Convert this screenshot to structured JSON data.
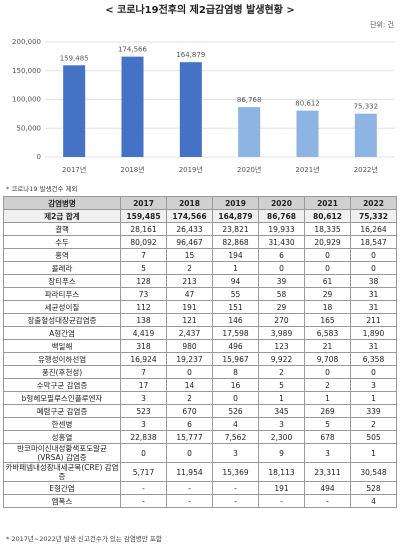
{
  "chart_data": {
    "type": "bar",
    "title": "< 코로나19전후의 제2급감염병 발생현황 >",
    "unit": "단위: 건",
    "categories": [
      "2017년",
      "2018년",
      "2019년",
      "2020년",
      "2021년",
      "2022년"
    ],
    "values": [
      159485,
      174566,
      164879,
      86768,
      80612,
      75332
    ],
    "value_labels": [
      "159,485",
      "174,566",
      "164,879",
      "86,768",
      "80,612",
      "75,332"
    ],
    "colors": [
      "#4472c4",
      "#4472c4",
      "#4472c4",
      "#8eb4e3",
      "#8eb4e3",
      "#8eb4e3"
    ],
    "ylim": [
      0,
      200000
    ],
    "yticks": [
      0,
      {
        "value": 50000,
        "label": "50,000"
      },
      {
        "value": 100000,
        "label": "100,000"
      },
      {
        "value": 150000,
        "label": "150,000"
      },
      {
        "value": 200000,
        "label": "200,000"
      }
    ],
    "grid": true,
    "note": "* 코로나19 발생건수 제외"
  },
  "table": {
    "header": [
      "감염병명",
      "2017",
      "2018",
      "2019",
      "2020",
      "2021",
      "2022"
    ],
    "rows": [
      [
        "제2급 합계",
        "159,485",
        "174,566",
        "164,879",
        "86,768",
        "80,612",
        "75,332"
      ],
      [
        "결핵",
        "28,161",
        "26,433",
        "23,821",
        "19,933",
        "18,335",
        "16,264"
      ],
      [
        "수두",
        "80,092",
        "96,467",
        "82,868",
        "31,430",
        "20,929",
        "18,547"
      ],
      [
        "홍역",
        "7",
        "15",
        "194",
        "6",
        "0",
        "0"
      ],
      [
        "콜레라",
        "5",
        "2",
        "1",
        "0",
        "0",
        "0"
      ],
      [
        "장티푸스",
        "128",
        "213",
        "94",
        "39",
        "61",
        "38"
      ],
      [
        "파라티푸스",
        "73",
        "47",
        "55",
        "58",
        "29",
        "31"
      ],
      [
        "세균성이질",
        "112",
        "191",
        "151",
        "29",
        "18",
        "31"
      ],
      [
        "장출혈성대장균감염증",
        "138",
        "121",
        "146",
        "270",
        "165",
        "211"
      ],
      [
        "A형간염",
        "4,419",
        "2,437",
        "17,598",
        "3,989",
        "6,583",
        "1,890"
      ],
      [
        "백일해",
        "318",
        "980",
        "496",
        "123",
        "21",
        "31"
      ],
      [
        "유행성이하선염",
        "16,924",
        "19,237",
        "15,967",
        "9,922",
        "9,708",
        "6,358"
      ],
      [
        "풍진(후천성)",
        "7",
        "0",
        "8",
        "2",
        "0",
        "0"
      ],
      [
        "수막구균 감염증",
        "17",
        "14",
        "16",
        "5",
        "2",
        "3"
      ],
      [
        "b형헤모필루스인플루엔자",
        "3",
        "2",
        "0",
        "1",
        "1",
        "1"
      ],
      [
        "폐렴구균 감염증",
        "523",
        "670",
        "526",
        "345",
        "269",
        "339"
      ],
      [
        "한센병",
        "3",
        "6",
        "4",
        "3",
        "5",
        "2"
      ],
      [
        "성홍열",
        "22,838",
        "15,777",
        "7,562",
        "2,300",
        "678",
        "505"
      ],
      [
        "반코마이신내성황색포도알균(VRSA) 감염증",
        "0",
        "0",
        "3",
        "9",
        "3",
        "1"
      ],
      [
        "카바페넴내성장내세균목(CRE) 감염증",
        "5,717",
        "11,954",
        "15,369",
        "18,113",
        "23,311",
        "30,548"
      ],
      [
        "E형간염",
        "-",
        "-",
        "-",
        "191",
        "494",
        "528"
      ],
      [
        "엠폭스",
        "-",
        "-",
        "-",
        "-",
        "-",
        "4"
      ]
    ],
    "note": "* 2017년~2022년 발생 신고건수가 있는 감염병만 포함"
  }
}
